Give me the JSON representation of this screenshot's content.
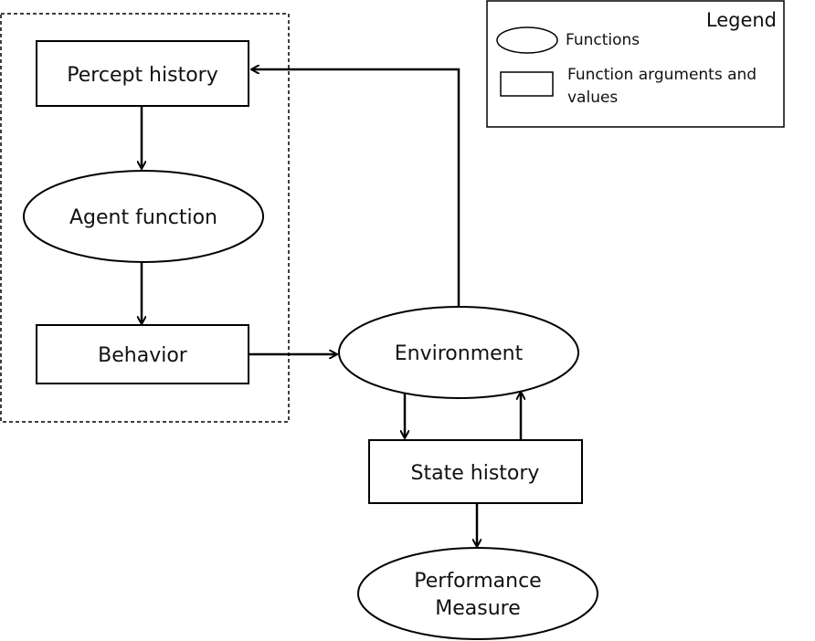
{
  "nodes": {
    "percept_history": "Percept history",
    "agent_function": "Agent function",
    "behavior": "Behavior",
    "environment": "Environment",
    "state_history": "State history",
    "performance_measure": [
      "Performance",
      "Measure"
    ]
  },
  "legend": {
    "title": "Legend",
    "functions": "Functions",
    "args_line1": "Function arguments and",
    "args_line2": "values"
  }
}
